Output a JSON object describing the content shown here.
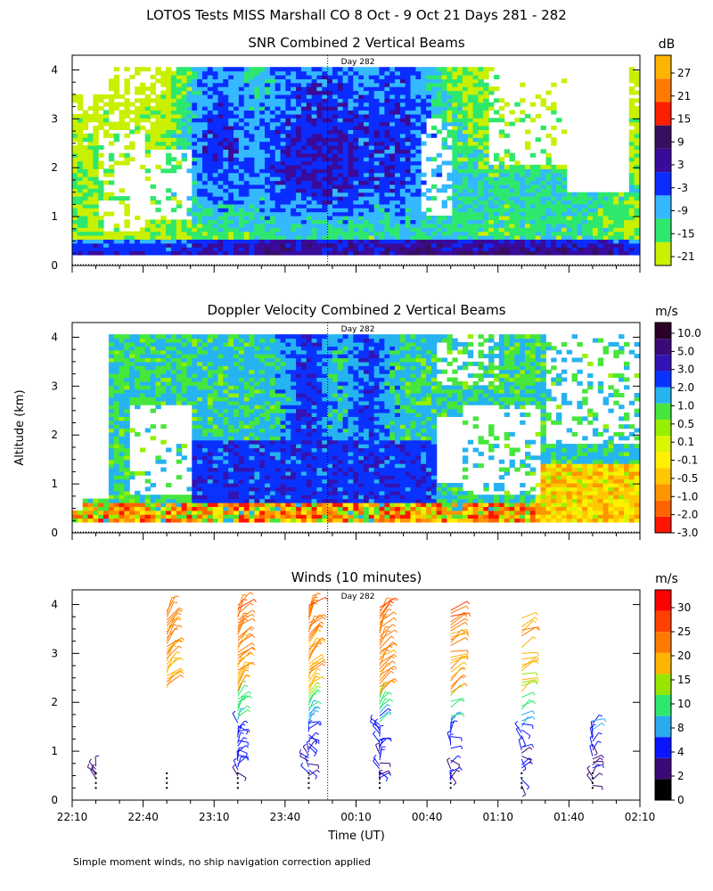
{
  "figure_title": "LOTOS Tests MISS Marshall CO   8 Oct -  9 Oct 21 Days 281 - 282",
  "y_axis_label": "Altitude (km)",
  "x_axis_label": "Time (UT)",
  "footnote": "Simple moment winds, no ship navigation correction applied",
  "day_marker_label": "Day 282",
  "x_tick_labels": [
    "22:10",
    "22:40",
    "23:10",
    "23:40",
    "00:10",
    "00:40",
    "01:10",
    "01:40",
    "02:10"
  ],
  "y_tick_labels": [
    "0",
    "1",
    "2",
    "3",
    "4"
  ],
  "chart_data": [
    {
      "type": "heatmap",
      "title": "SNR Combined 2 Vertical Beams",
      "xlabel": "",
      "ylabel": "Altitude (km)",
      "x_range": [
        "22:10",
        "02:10"
      ],
      "ylim": [
        0,
        4
      ],
      "colorbar": {
        "unit": "dB",
        "labels": [
          "27",
          "21",
          "15",
          "9",
          "3",
          "-3",
          "-9",
          "-15",
          "-21"
        ],
        "colors": [
          "#c8f000",
          "#2ee86e",
          "#34b8ff",
          "#0a2cff",
          "#3a0a9a",
          "#380f60",
          "#ff1e00",
          "#ff7a00",
          "#ffb400"
        ]
      },
      "blank_regions": "white where no data",
      "day_marker_time": "23:58"
    },
    {
      "type": "heatmap",
      "title": "Doppler Velocity Combined 2 Vertical Beams",
      "xlabel": "",
      "ylabel": "Altitude (km)",
      "x_range": [
        "22:10",
        "02:10"
      ],
      "ylim": [
        0,
        4
      ],
      "colorbar": {
        "unit": "m/s",
        "labels": [
          "10.0",
          "5.0",
          "3.0",
          "2.0",
          "1.0",
          "0.5",
          "0.1",
          "-0.1",
          "-0.5",
          "-1.0",
          "-2.0",
          "-3.0"
        ],
        "colors": [
          "#ff1500",
          "#ff6400",
          "#ff9600",
          "#ffc800",
          "#fff000",
          "#dcf500",
          "#96f000",
          "#46e63c",
          "#26b4f0",
          "#0a32ff",
          "#3214b4",
          "#3c0a78",
          "#2a0028"
        ]
      },
      "day_marker_time": "23:58"
    },
    {
      "type": "scatter",
      "title": "Winds (10 minutes)",
      "xlabel": "Time (UT)",
      "ylabel": "Altitude (km)",
      "x_range": [
        "22:10",
        "02:10"
      ],
      "ylim": [
        0,
        4
      ],
      "marks": "wind barbs colored by speed",
      "colorbar": {
        "unit": "m/s",
        "labels": [
          "30",
          "25",
          "20",
          "15",
          "10",
          "8",
          "4",
          "2",
          "0"
        ],
        "colors": [
          "#000000",
          "#3c0a78",
          "#0a14ff",
          "#2aaaf0",
          "#2ee86e",
          "#96e600",
          "#ffb400",
          "#ff7a00",
          "#ff4000",
          "#ff0000"
        ]
      },
      "profile_times": [
        "22:20",
        "22:50",
        "23:20",
        "23:50",
        "00:20",
        "00:50",
        "01:20",
        "01:50"
      ],
      "day_marker_time": "23:58"
    }
  ]
}
